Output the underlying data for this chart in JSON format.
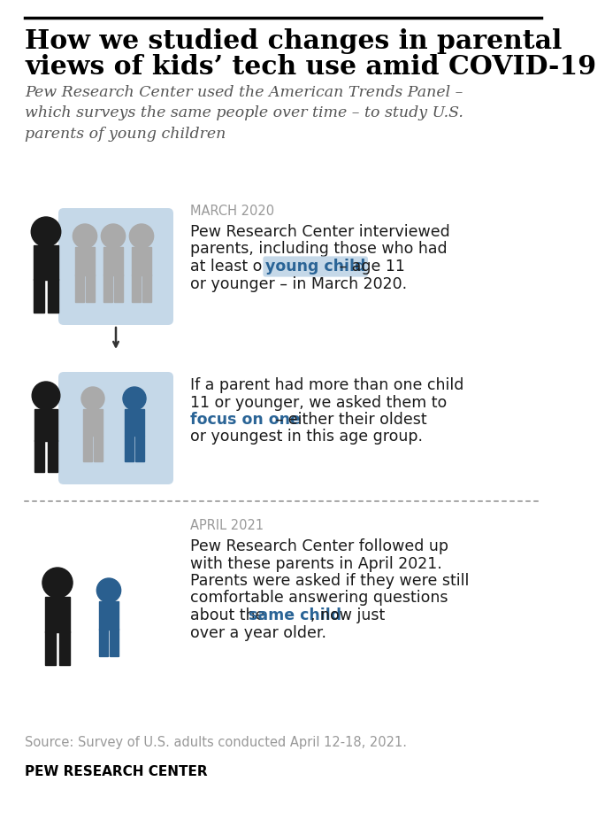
{
  "title_line1": "How we studied changes in parental",
  "title_line2": "views of kids’ tech use amid COVID-19",
  "subtitle": "Pew Research Center used the American Trends Panel –\nwhich surveys the same people over time – to study U.S.\nparents of young children",
  "section1_label": "MARCH 2020",
  "section2_label": "APRIL 2021",
  "source_text": "Source: Survey of U.S. adults conducted April 12-18, 2021.",
  "footer": "PEW RESEARCH CENTER",
  "bg_color": "#ffffff",
  "title_color": "#000000",
  "subtitle_color": "#555555",
  "label_color": "#999999",
  "body_color": "#1a1a1a",
  "highlight_color": "#2a6496",
  "highlight_bg": "#c5d8e8",
  "source_color": "#999999",
  "black_figure": "#1a1a1a",
  "gray_figure": "#aaaaaa",
  "blue_figure": "#2a5f8f",
  "light_blue_bg": "#c5d8e8",
  "separator_color": "#aaaaaa",
  "border_color": "#000000"
}
